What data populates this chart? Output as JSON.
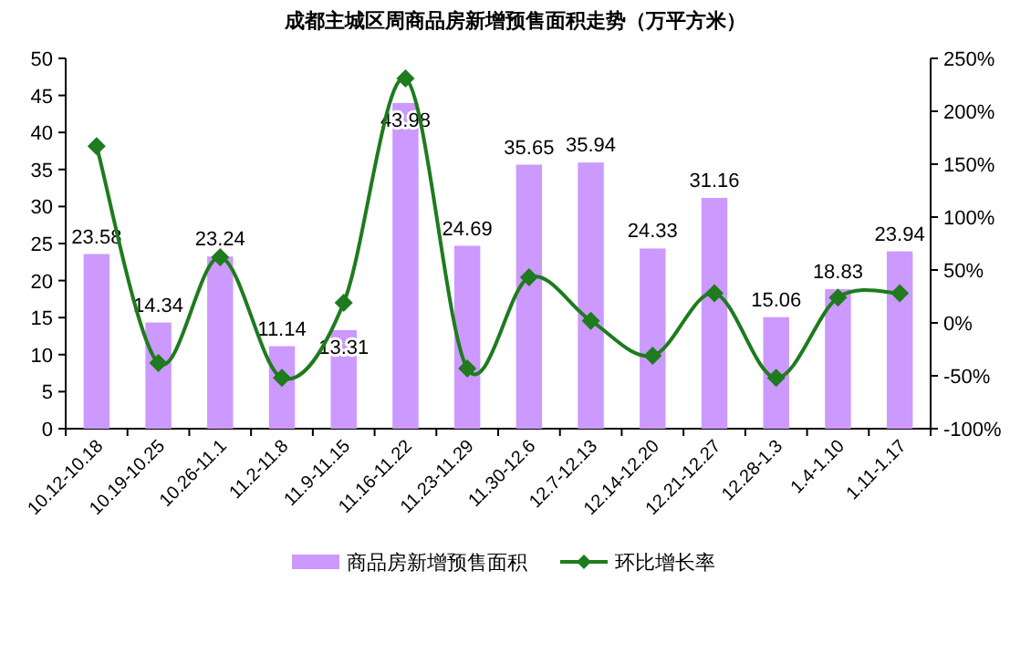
{
  "chart_data": {
    "type": "bar",
    "title": "成都主城区周商品房新增预售面积走势（万平方米）",
    "categories": [
      "10.12-10.18",
      "10.19-10.25",
      "10.26-11.1",
      "11.2-11.8",
      "11.9-11.15",
      "11.16-11.22",
      "11.23-11.29",
      "11.30-12.6",
      "12.7-12.13",
      "12.14-12.20",
      "12.21-12.27",
      "12.28-1.3",
      "1.4-1.10",
      "1.11-1.17"
    ],
    "series": [
      {
        "name": "商品房新增预售面积",
        "color": "#cc99ff",
        "values": [
          23.58,
          14.34,
          23.24,
          11.14,
          13.31,
          43.98,
          24.69,
          35.65,
          35.94,
          24.33,
          31.16,
          15.06,
          18.83,
          23.94
        ],
        "value_labels": [
          "23.58",
          "14.34",
          "23.24",
          "11.14",
          "13.31",
          "43.98",
          "24.69",
          "35.65",
          "35.94",
          "24.33",
          "31.16",
          "15.06",
          "18.83",
          "23.94"
        ]
      },
      {
        "name": "环比增长率",
        "type": "line",
        "axis": "y2",
        "color": "#1e7b1e",
        "values": [
          167,
          -38,
          62,
          -52,
          19,
          231,
          -43,
          43,
          2,
          -31,
          28,
          -52,
          24,
          28
        ]
      }
    ],
    "ylim": [
      0,
      50
    ],
    "yticks": [
      0,
      5,
      10,
      15,
      20,
      25,
      30,
      35,
      40,
      45,
      50
    ],
    "y2lim": [
      -100,
      250
    ],
    "y2ticks": [
      {
        "value": -100,
        "label": "-100%"
      },
      {
        "value": -50,
        "label": "-50%"
      },
      {
        "value": 0,
        "label": "0%"
      },
      {
        "value": 50,
        "label": "50%"
      },
      {
        "value": 100,
        "label": "100%"
      },
      {
        "value": 150,
        "label": "150%"
      },
      {
        "value": 200,
        "label": "200%"
      },
      {
        "value": 250,
        "label": "250%"
      }
    ],
    "marker": "diamond",
    "legend": "bottom",
    "grid": false
  }
}
